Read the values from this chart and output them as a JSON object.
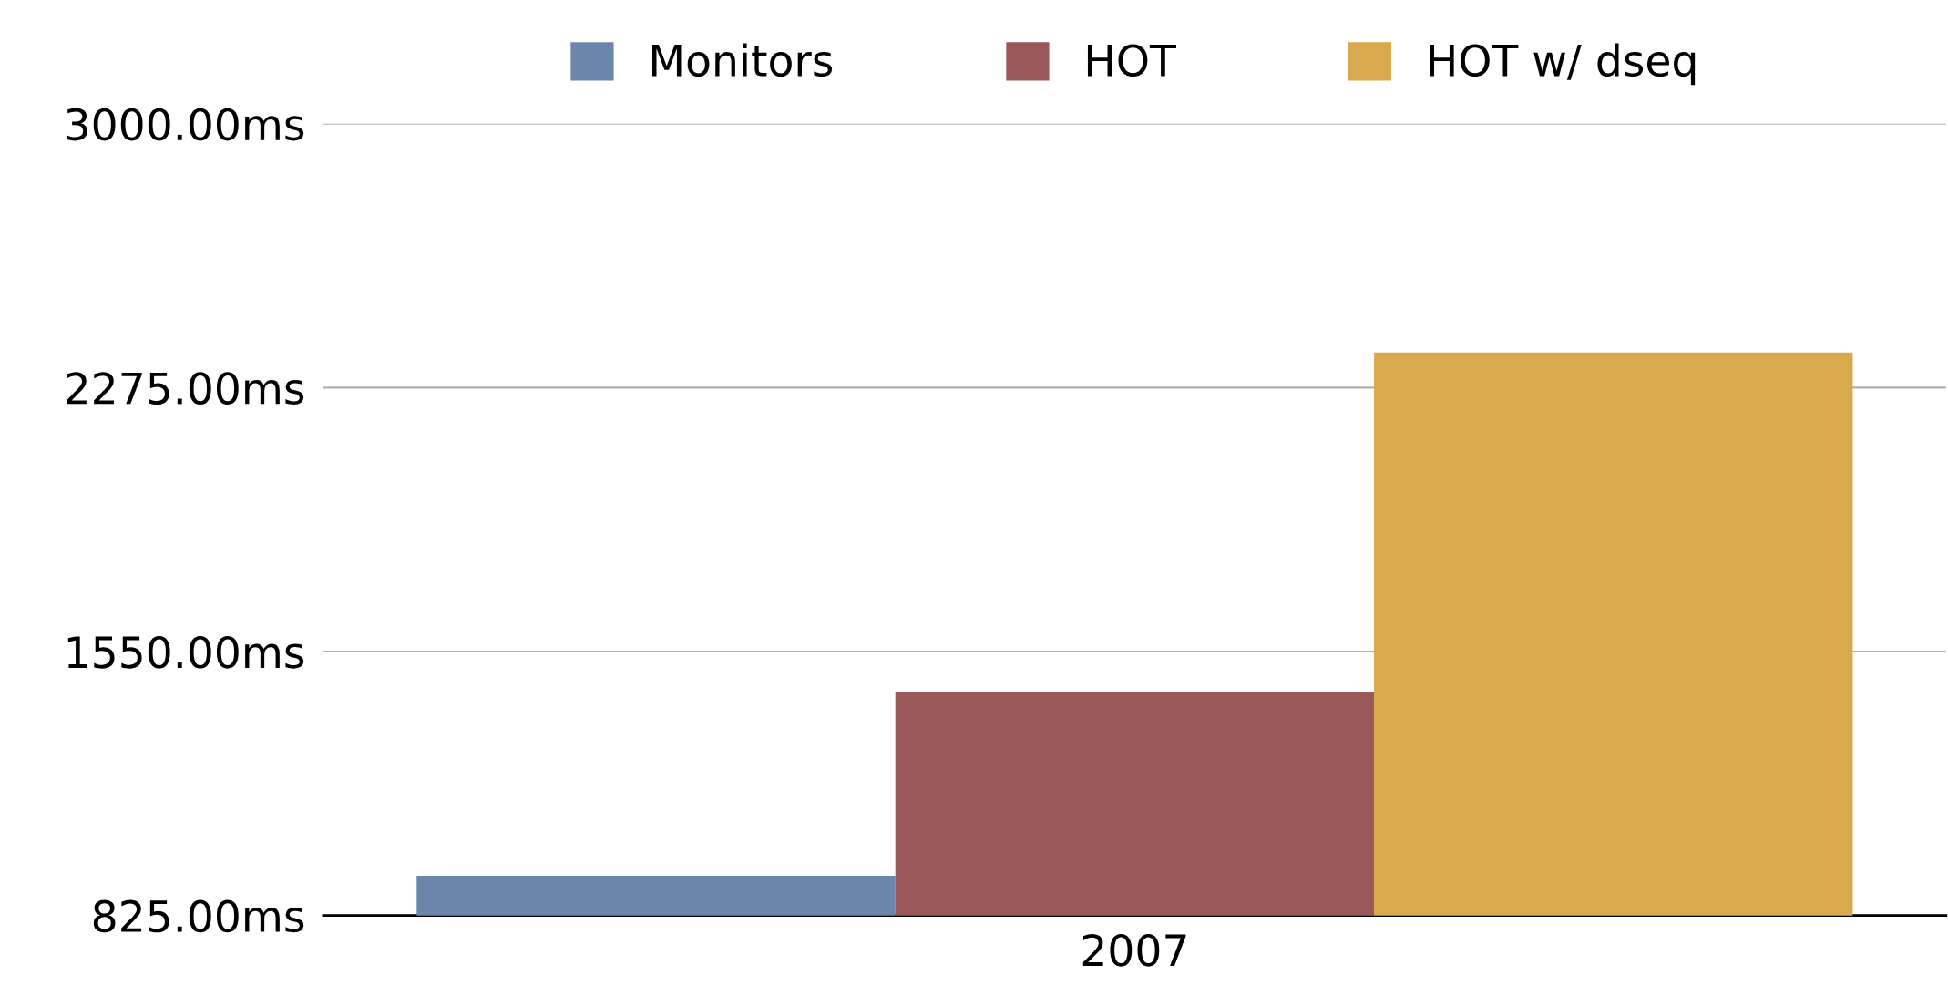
{
  "chart_data": {
    "type": "bar",
    "categories": [
      "2007"
    ],
    "series": [
      {
        "name": "Monitors",
        "color": "#6a86a8",
        "values": [
          934
        ]
      },
      {
        "name": "HOT",
        "color": "#9a5858",
        "values": [
          1440
        ]
      },
      {
        "name": "HOT w/ dseq",
        "color": "#d9a94e",
        "values": [
          2372
        ]
      }
    ],
    "ylim": [
      825,
      3000
    ],
    "yticks": [
      {
        "value": 825,
        "label": "825.00ms"
      },
      {
        "value": 1550,
        "label": "1550.00ms"
      },
      {
        "value": 2275,
        "label": "2275.00ms"
      },
      {
        "value": 3000,
        "label": "3000.00ms"
      }
    ],
    "grid": "y",
    "legend": "top"
  }
}
